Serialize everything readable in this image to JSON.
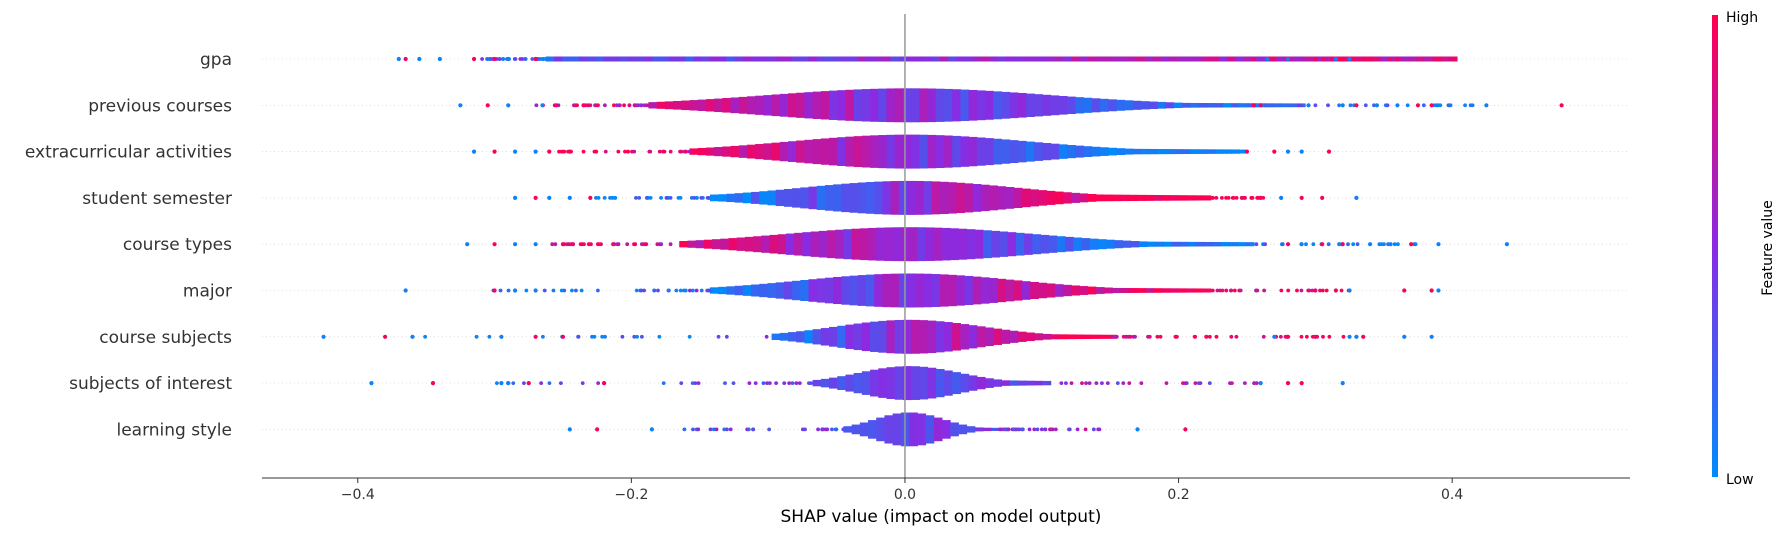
{
  "chart_data": {
    "type": "scatter",
    "subtype": "shap-violin-summary",
    "xlabel": "SHAP value (impact on model output)",
    "xlim": [
      -0.47,
      0.53
    ],
    "xticks": [
      -0.4,
      -0.2,
      0.0,
      0.2,
      0.4
    ],
    "xtick_labels": [
      "−0.4",
      "−0.2",
      "0.0",
      "0.2",
      "0.4"
    ],
    "zero_line": true,
    "colorbar": {
      "label": "Feature value",
      "high": "High",
      "low": "Low",
      "low_color": "#008bfb",
      "high_color": "#ff0052"
    },
    "features": [
      {
        "name": "gpa",
        "min": -0.37,
        "max": 0.36,
        "spread": 0.35,
        "density": 0.02,
        "color_trend": 0.4,
        "outliers": [
          -0.37,
          -0.365,
          -0.355,
          -0.34,
          -0.315,
          -0.3,
          -0.29,
          -0.27,
          0.255,
          0.265,
          0.28,
          0.3,
          0.315,
          0.325,
          0.34,
          0.36
        ]
      },
      {
        "name": "previous courses",
        "min": -0.33,
        "max": 0.48,
        "spread": 0.25,
        "density": 0.28,
        "color_trend": -0.6,
        "outliers": [
          -0.325,
          -0.305,
          -0.29,
          -0.265,
          -0.255,
          -0.235,
          0.245,
          0.255,
          0.26,
          0.295,
          0.32,
          0.33,
          0.345,
          0.36,
          0.375,
          0.385,
          0.425,
          0.48
        ]
      },
      {
        "name": "extracurricular activities",
        "min": -0.315,
        "max": 0.31,
        "spread": 0.21,
        "density": 0.32,
        "color_trend": -0.8,
        "outliers": [
          -0.315,
          -0.3,
          -0.285,
          -0.27,
          -0.26,
          -0.245,
          0.235,
          0.25,
          0.27,
          0.28,
          0.29,
          0.31
        ]
      },
      {
        "name": "student semester",
        "min": -0.29,
        "max": 0.33,
        "spread": 0.19,
        "density": 0.38,
        "color_trend": 0.9,
        "outliers": [
          -0.285,
          -0.27,
          -0.26,
          -0.245,
          -0.23,
          0.26,
          0.275,
          0.29,
          0.305,
          0.33
        ]
      },
      {
        "name": "course types",
        "min": -0.32,
        "max": 0.44,
        "spread": 0.22,
        "density": 0.3,
        "color_trend": -0.7,
        "outliers": [
          -0.32,
          -0.3,
          -0.285,
          -0.27,
          -0.25,
          0.28,
          0.29,
          0.305,
          0.32,
          0.34,
          0.355,
          0.37,
          0.39,
          0.44
        ]
      },
      {
        "name": "major",
        "min": -0.365,
        "max": 0.39,
        "spread": 0.19,
        "density": 0.3,
        "color_trend": 0.7,
        "outliers": [
          -0.365,
          -0.3,
          -0.285,
          -0.27,
          0.3,
          0.315,
          0.325,
          0.365,
          0.385,
          0.39
        ]
      },
      {
        "name": "course subjects",
        "min": -0.425,
        "max": 0.385,
        "spread": 0.13,
        "density": 0.3,
        "color_trend": 0.8,
        "outliers": [
          -0.425,
          -0.38,
          -0.36,
          -0.295,
          -0.27,
          -0.25,
          0.27,
          0.28,
          0.3,
          0.325,
          0.33,
          0.335,
          0.365,
          0.385
        ]
      },
      {
        "name": "subjects of interest",
        "min": -0.39,
        "max": 0.32,
        "spread": 0.09,
        "density": 0.32,
        "color_trend": 0.3,
        "mostly_low": true,
        "outliers": [
          -0.39,
          -0.345,
          -0.295,
          -0.29,
          -0.275,
          -0.22,
          0.26,
          0.28,
          0.29,
          0.32
        ]
      },
      {
        "name": "learning style",
        "min": -0.245,
        "max": 0.205,
        "spread": 0.06,
        "density": 0.22,
        "color_trend": 0.2,
        "mostly_low": true,
        "outliers": [
          -0.245,
          -0.225,
          -0.185,
          0.17,
          0.205
        ]
      }
    ]
  }
}
